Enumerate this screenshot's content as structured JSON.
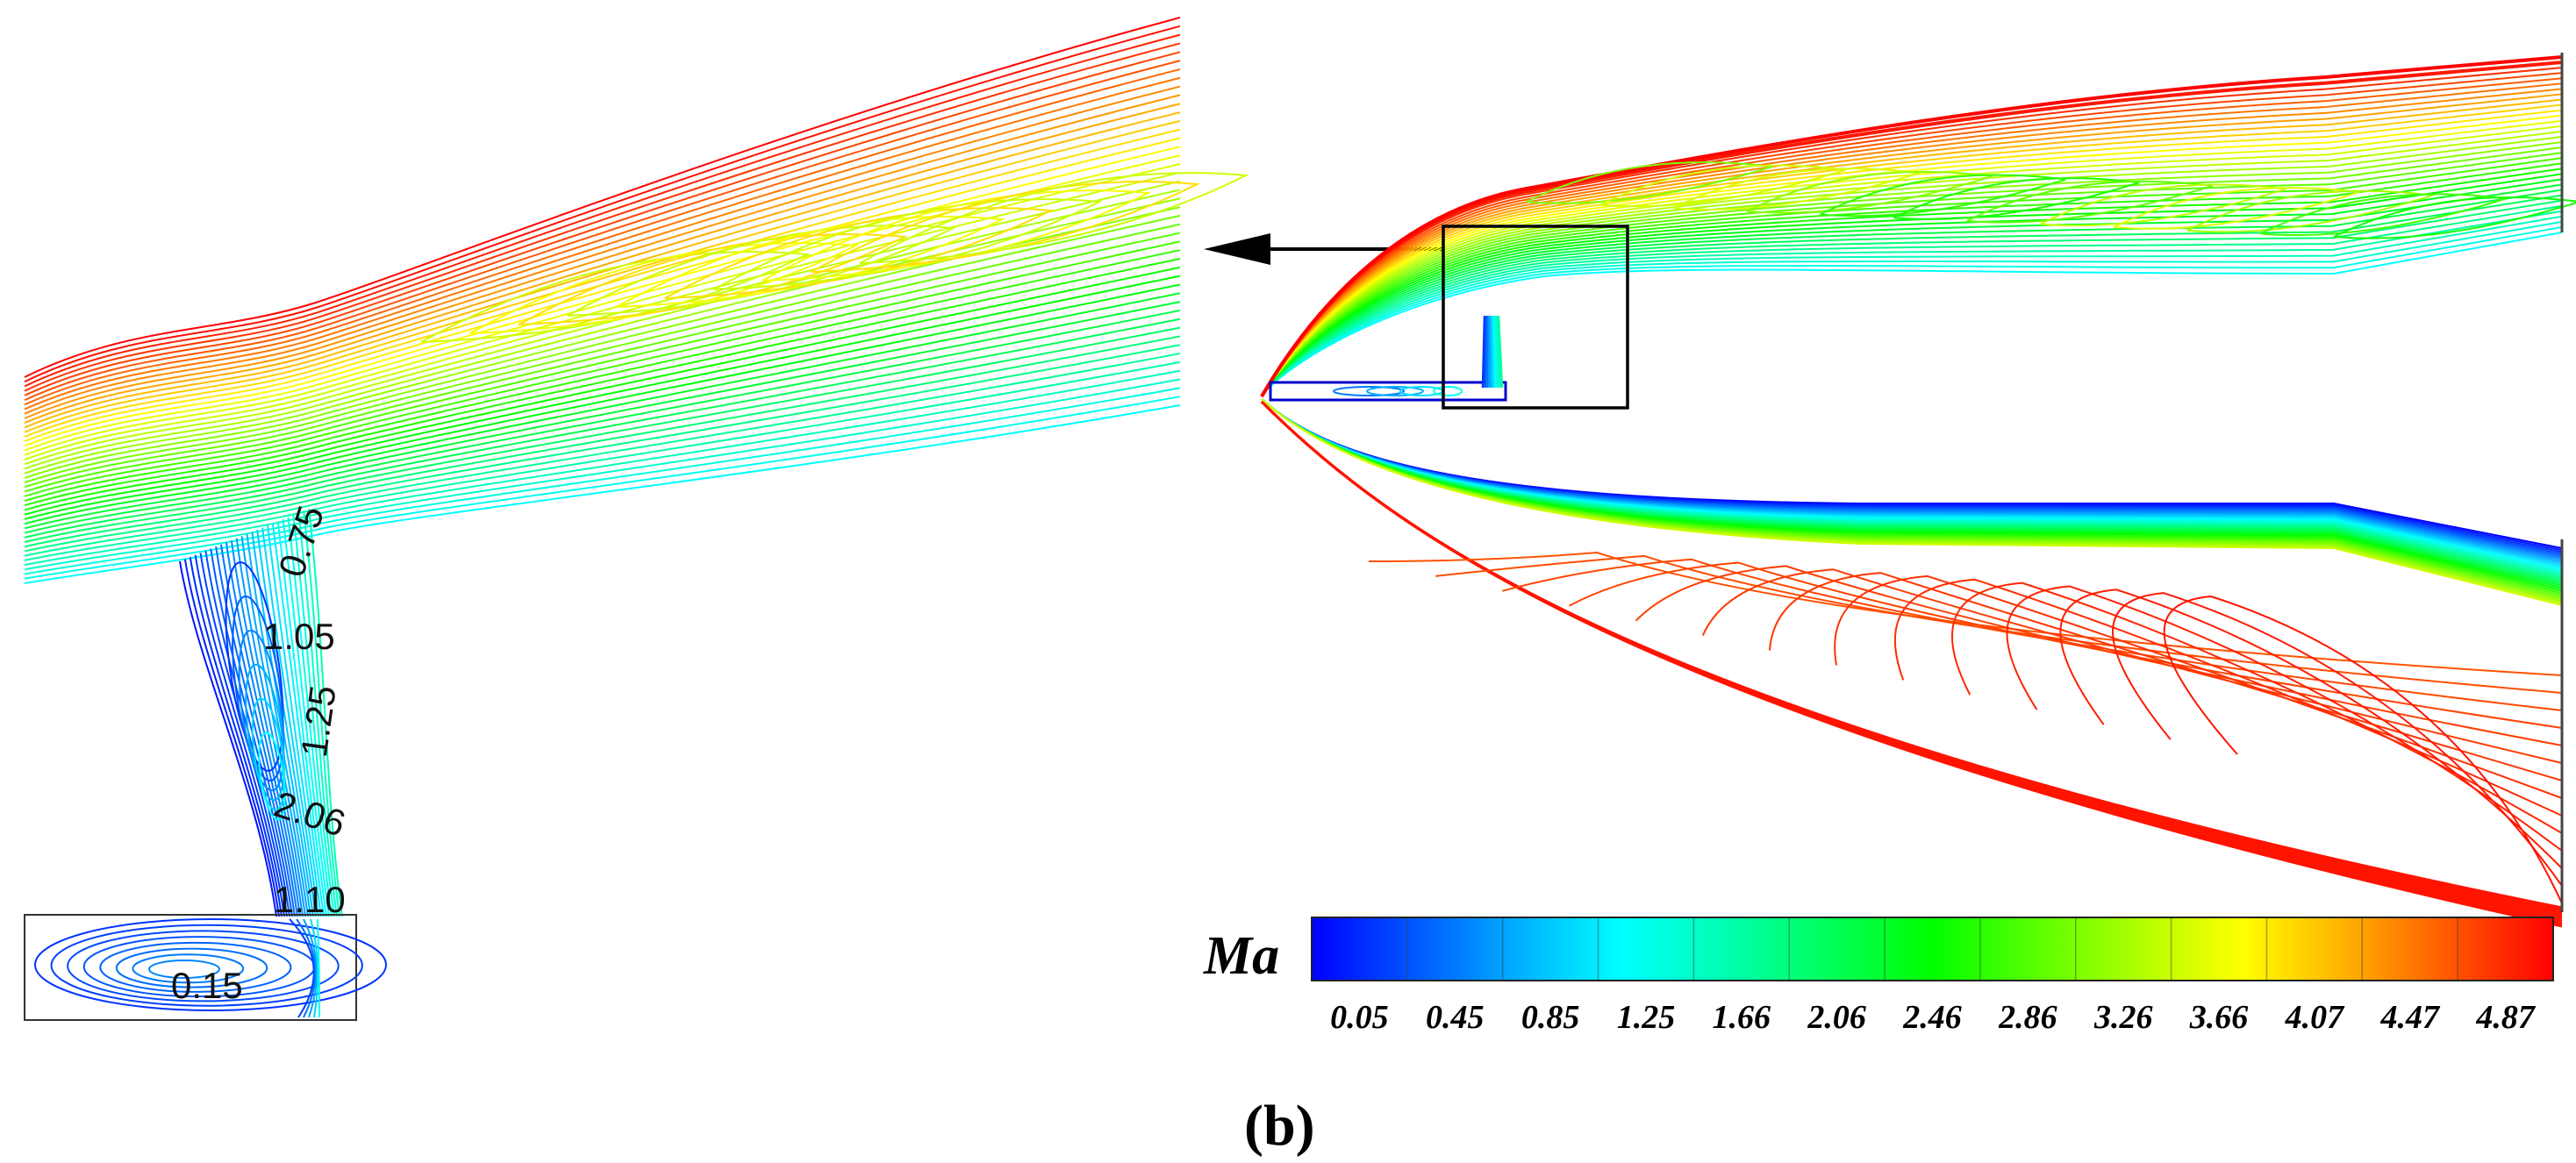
{
  "figure": {
    "panel_label": "(b)",
    "colorbar": {
      "title": "Ma",
      "ticks": [
        "0.05",
        "0.45",
        "0.85",
        "1.25",
        "1.66",
        "2.06",
        "2.46",
        "2.86",
        "3.26",
        "3.66",
        "4.07",
        "4.47",
        "4.87"
      ],
      "colors": [
        "#0000ff",
        "#0058ff",
        "#00b0ff",
        "#00ffff",
        "#00ffb0",
        "#00ff58",
        "#00ff00",
        "#58ff00",
        "#b0ff00",
        "#ffff00",
        "#ffb000",
        "#ff5800",
        "#ff0000"
      ]
    },
    "zoom_labels": [
      "0.75",
      "1.05",
      "1.25",
      "2.06",
      "1.10",
      "0.15"
    ]
  }
}
